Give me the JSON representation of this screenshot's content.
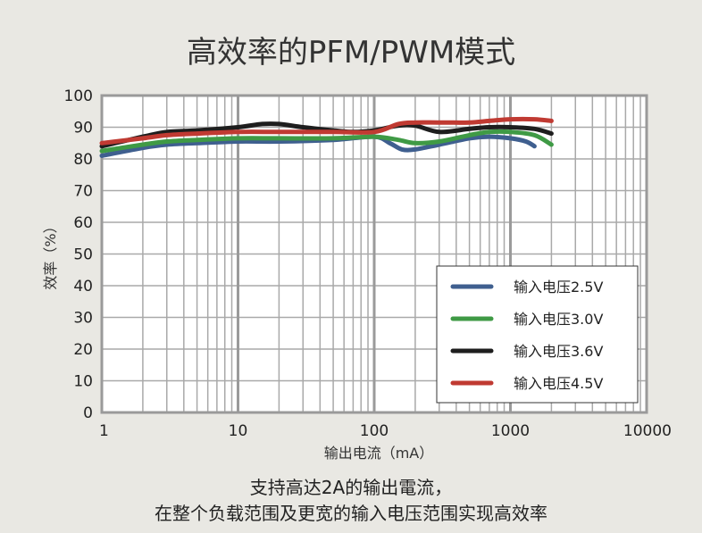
{
  "chart_data": {
    "type": "line",
    "title": "高效率的PFM/PWM模式",
    "xlabel": "输出电流（mA）",
    "ylabel": "效率（%）",
    "x_scale": "log",
    "xlim": [
      1,
      10000
    ],
    "ylim": [
      0,
      100
    ],
    "x_ticks": [
      "1",
      "10",
      "100",
      "1000",
      "10000"
    ],
    "y_ticks": [
      "0",
      "10",
      "20",
      "30",
      "40",
      "50",
      "60",
      "70",
      "80",
      "90",
      "100"
    ],
    "grid": true,
    "legend_position": "bottom-right",
    "series": [
      {
        "name": "输入电压2.5V",
        "color": "#3f5f8f",
        "points": [
          [
            1,
            81
          ],
          [
            2,
            83.5
          ],
          [
            3,
            84.5
          ],
          [
            5,
            85
          ],
          [
            10,
            85.5
          ],
          [
            20,
            85.5
          ],
          [
            50,
            86
          ],
          [
            100,
            87
          ],
          [
            130,
            85
          ],
          [
            160,
            83
          ],
          [
            200,
            83
          ],
          [
            300,
            84.5
          ],
          [
            500,
            86.5
          ],
          [
            700,
            87
          ],
          [
            1000,
            86.5
          ],
          [
            1300,
            85.5
          ],
          [
            1500,
            84
          ]
        ]
      },
      {
        "name": "输入电压3.0V",
        "color": "#3f9a45",
        "points": [
          [
            1,
            82.5
          ],
          [
            2,
            84.5
          ],
          [
            3,
            85.5
          ],
          [
            5,
            86
          ],
          [
            10,
            86.5
          ],
          [
            20,
            86.5
          ],
          [
            50,
            86.5
          ],
          [
            100,
            87
          ],
          [
            150,
            86
          ],
          [
            200,
            85
          ],
          [
            300,
            85.5
          ],
          [
            500,
            87.5
          ],
          [
            700,
            88.5
          ],
          [
            1000,
            88.5
          ],
          [
            1500,
            87.5
          ],
          [
            2000,
            84.5
          ]
        ]
      },
      {
        "name": "输入电压3.6V",
        "color": "#1e1e1e",
        "points": [
          [
            1,
            84
          ],
          [
            2,
            87
          ],
          [
            3,
            88.5
          ],
          [
            5,
            89
          ],
          [
            10,
            90
          ],
          [
            15,
            91
          ],
          [
            20,
            91
          ],
          [
            30,
            90
          ],
          [
            50,
            89
          ],
          [
            70,
            88.5
          ],
          [
            100,
            89
          ],
          [
            150,
            90.5
          ],
          [
            200,
            90.5
          ],
          [
            300,
            88.5
          ],
          [
            500,
            89.5
          ],
          [
            700,
            90
          ],
          [
            1000,
            90
          ],
          [
            1500,
            89.5
          ],
          [
            2000,
            88
          ]
        ]
      },
      {
        "name": "输入电压4.5V",
        "color": "#c03a32",
        "points": [
          [
            1,
            85
          ],
          [
            2,
            86.5
          ],
          [
            3,
            87.5
          ],
          [
            5,
            88
          ],
          [
            10,
            88.5
          ],
          [
            20,
            88.5
          ],
          [
            50,
            88.5
          ],
          [
            100,
            88.5
          ],
          [
            150,
            91
          ],
          [
            200,
            91.5
          ],
          [
            300,
            91.5
          ],
          [
            500,
            91.5
          ],
          [
            700,
            92
          ],
          [
            1000,
            92.5
          ],
          [
            1500,
            92.5
          ],
          [
            2000,
            92
          ]
        ]
      }
    ]
  },
  "caption": {
    "line1": "支持高达2A的输出電流，",
    "line2": "在整个负载范围及更宽的输入电压范围实现高效率"
  }
}
